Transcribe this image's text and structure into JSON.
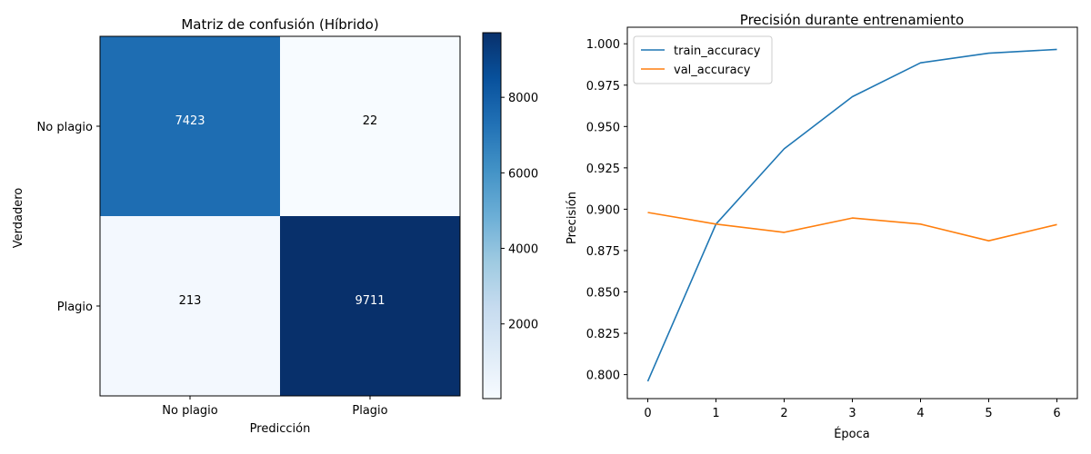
{
  "chart_data": [
    {
      "type": "heatmap",
      "title": "Matriz de confusión (Híbrido)",
      "xlabel": "Predicción",
      "ylabel": "Verdadero",
      "x_categories": [
        "No plagio",
        "Plagio"
      ],
      "y_categories": [
        "No plagio",
        "Plagio"
      ],
      "values": [
        [
          7423,
          22
        ],
        [
          213,
          9711
        ]
      ],
      "colormap": "Blues",
      "colorbar": {
        "range": [
          22,
          9711
        ],
        "ticks": [
          2000,
          4000,
          6000,
          8000
        ]
      }
    },
    {
      "type": "line",
      "title": "Precisión durante entrenamiento",
      "xlabel": "Época",
      "ylabel": "Precisión",
      "x": [
        0,
        1,
        2,
        3,
        4,
        5,
        6
      ],
      "xlim": [
        -0.3,
        6.3
      ],
      "ylim": [
        0.7855,
        1.01
      ],
      "xticks": [
        0,
        1,
        2,
        3,
        4,
        5,
        6
      ],
      "yticks": [
        0.8,
        0.825,
        0.85,
        0.875,
        0.9,
        0.925,
        0.95,
        0.975,
        1.0
      ],
      "grid": false,
      "legend": "top-left",
      "series": [
        {
          "name": "train_accuracy",
          "color": "#1f77b4",
          "values": [
            0.796,
            0.891,
            0.9365,
            0.968,
            0.9885,
            0.9943,
            0.9966
          ]
        },
        {
          "name": "val_accuracy",
          "color": "#ff7f0e",
          "values": [
            0.898,
            0.891,
            0.886,
            0.8947,
            0.891,
            0.8809,
            0.8907
          ]
        }
      ]
    }
  ]
}
